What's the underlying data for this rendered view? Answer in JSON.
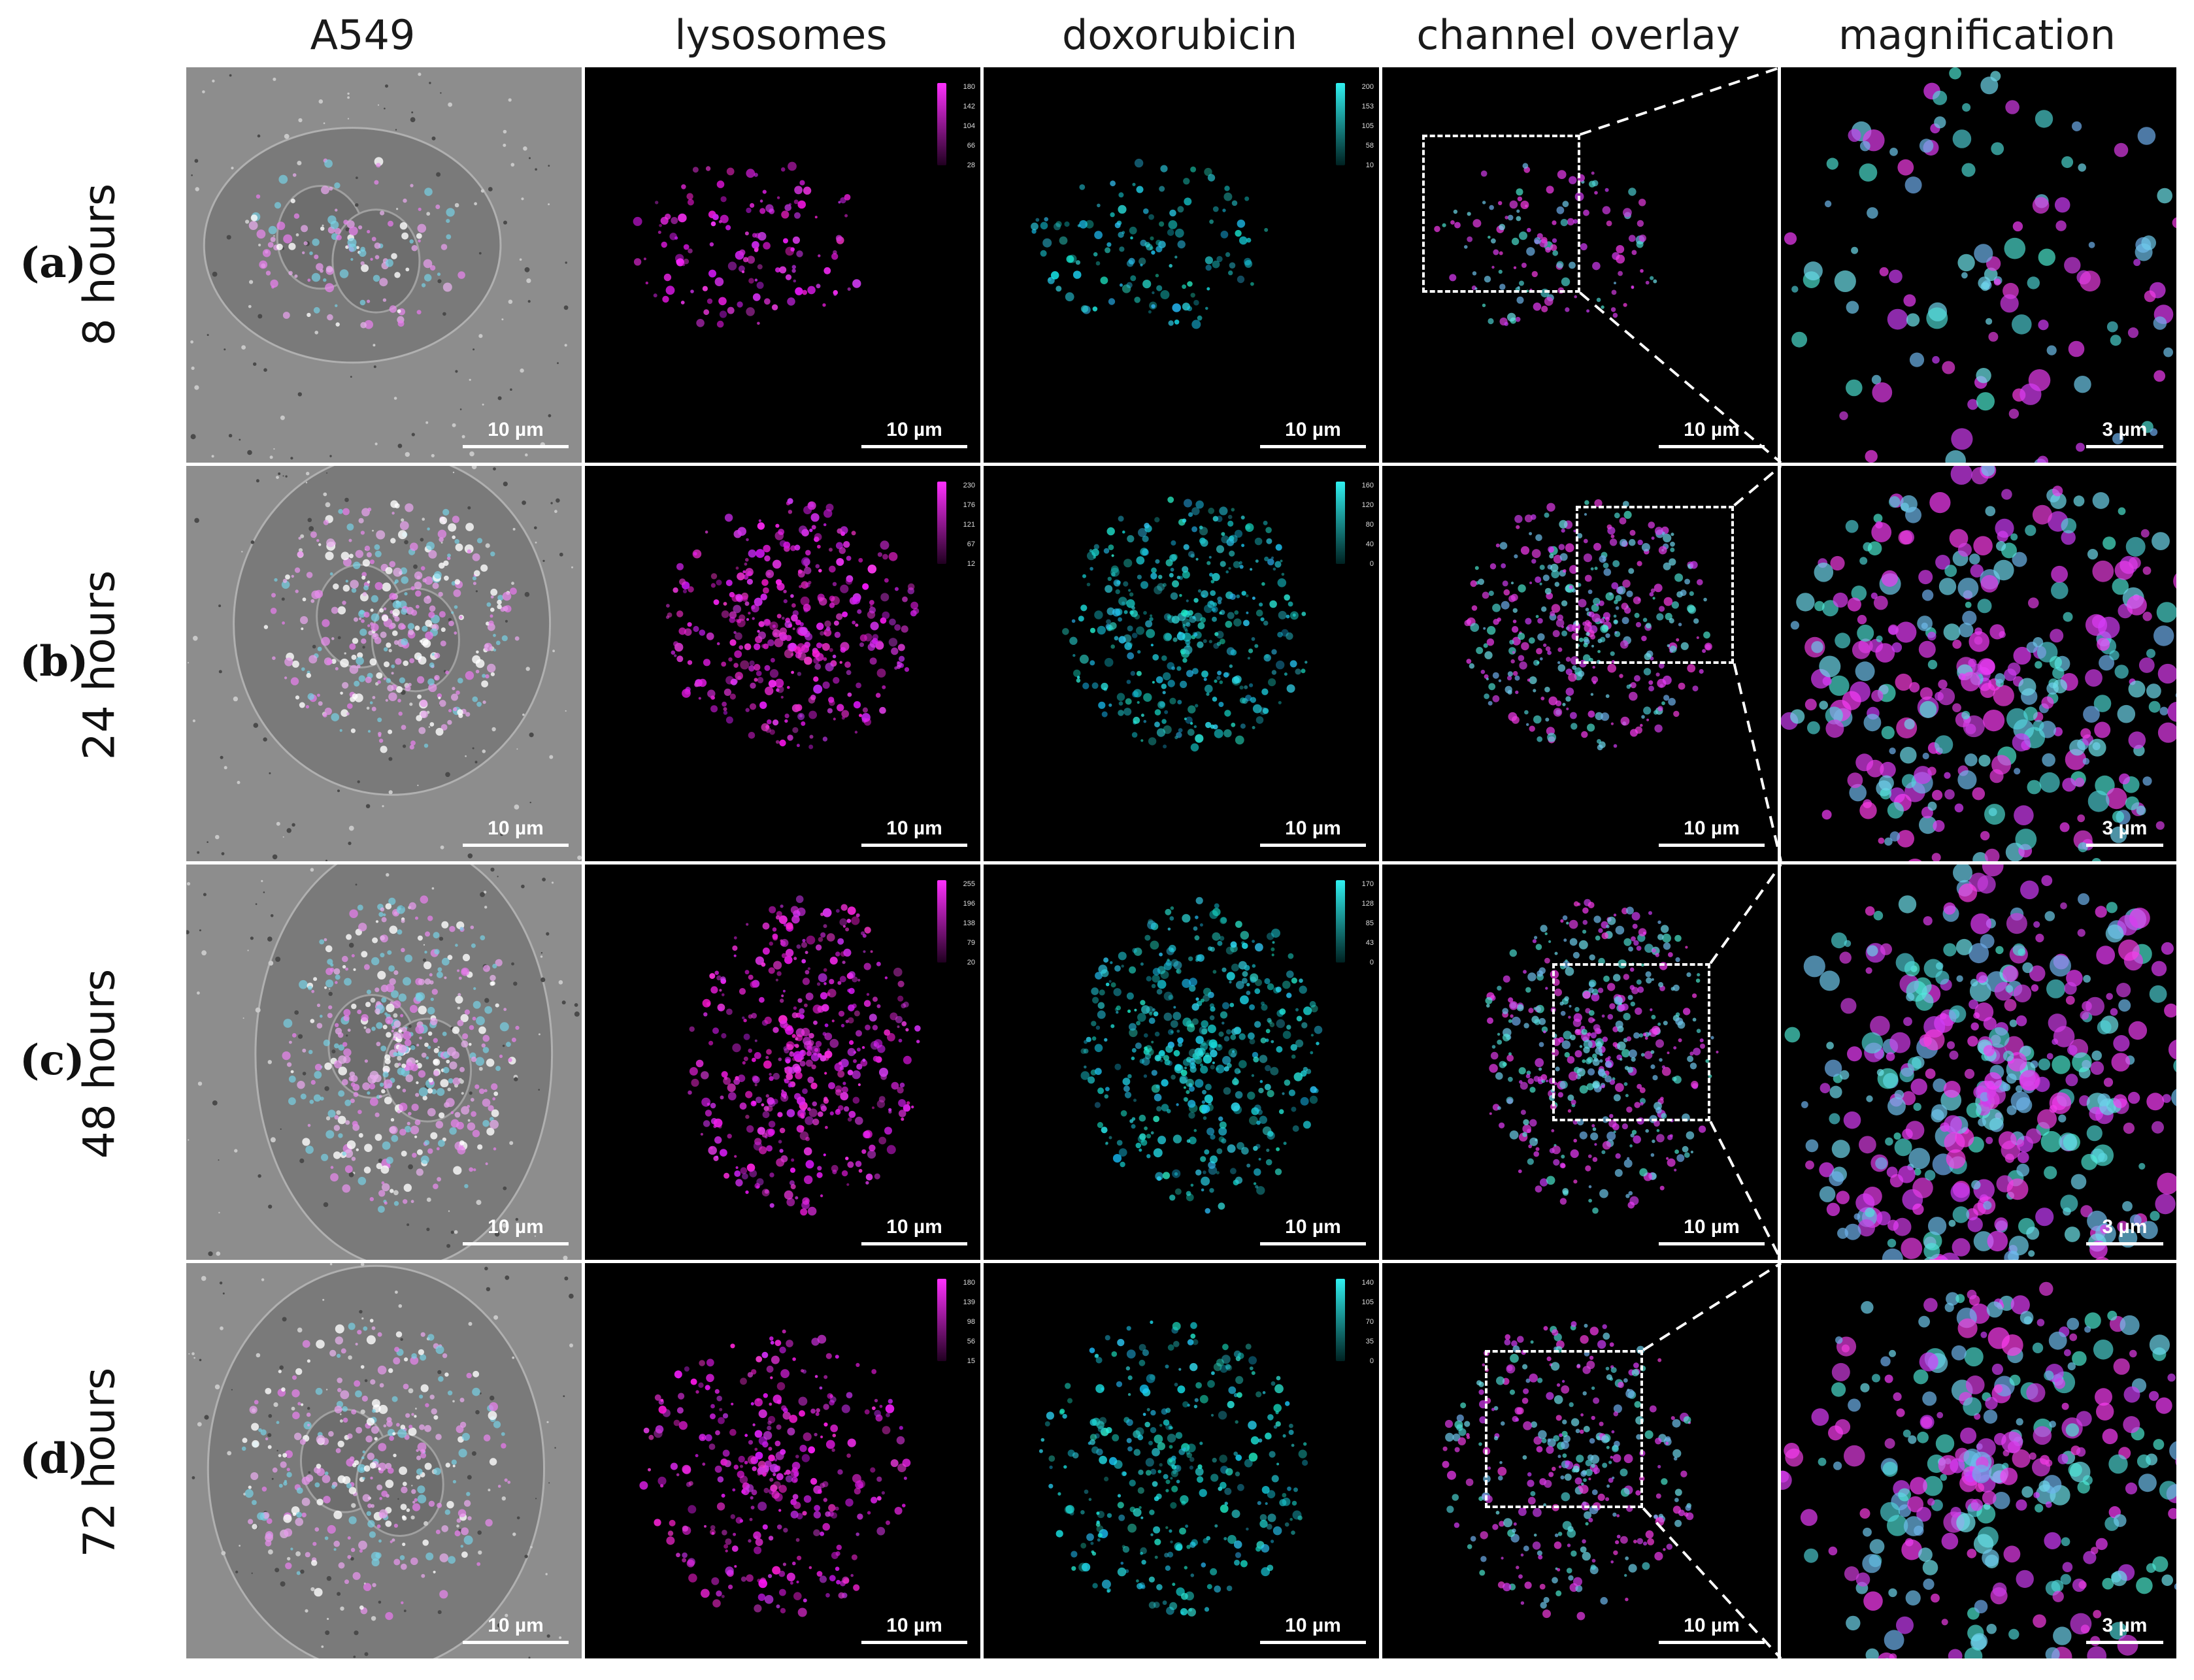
{
  "columns": [
    {
      "id": "a549",
      "label": "A549"
    },
    {
      "id": "lysosomes",
      "label": "lysosomes"
    },
    {
      "id": "doxorubicin",
      "label": "doxorubicin"
    },
    {
      "id": "overlay",
      "label": "channel overlay"
    },
    {
      "id": "magnification",
      "label": "magnification"
    }
  ],
  "rows": [
    {
      "label": "(a)",
      "time": "8 hours",
      "lyso_ticks": [
        "180",
        "142",
        "104",
        "66",
        "28"
      ],
      "dox_ticks": [
        "200",
        "153",
        "105",
        "58",
        "10"
      ]
    },
    {
      "label": "(b)",
      "time": "24 hours",
      "lyso_ticks": [
        "230",
        "176",
        "121",
        "67",
        "12"
      ],
      "dox_ticks": [
        "160",
        "120",
        "80",
        "40",
        "0"
      ]
    },
    {
      "label": "(c)",
      "time": "48 hours",
      "lyso_ticks": [
        "255",
        "196",
        "138",
        "79",
        "20"
      ],
      "dox_ticks": [
        "170",
        "128",
        "85",
        "43",
        "0"
      ]
    },
    {
      "label": "(d)",
      "time": "72 hours",
      "lyso_ticks": [
        "180",
        "139",
        "98",
        "56",
        "15"
      ],
      "dox_ticks": [
        "140",
        "105",
        "70",
        "35",
        "0"
      ]
    }
  ],
  "scalebar_main": "10 µm",
  "scalebar_mag": "3 µm",
  "colors": {
    "lysosomes": "#e020e0",
    "doxorubicin": "#20d8d8",
    "brightfield": "#8a8a8a",
    "background": "#000000"
  }
}
